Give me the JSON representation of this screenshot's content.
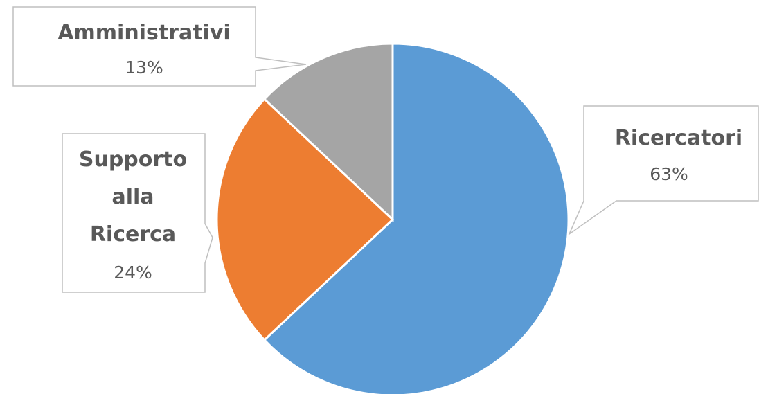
{
  "chart_data": {
    "type": "pie",
    "title": "",
    "start_angle_deg": 0,
    "direction": "clockwise",
    "slices": [
      {
        "label_lines": [
          "Ricercatori"
        ],
        "value": 63,
        "value_label": "63%",
        "color": "#5B9BD5"
      },
      {
        "label_lines": [
          "Supporto",
          "alla",
          "Ricerca"
        ],
        "value": 24,
        "value_label": "24%",
        "color": "#ED7D31"
      },
      {
        "label_lines": [
          "Amministrativi"
        ],
        "value": 13,
        "value_label": "13%",
        "color": "#A5A5A5"
      }
    ],
    "data_labels": "callouts with leader lines",
    "legend": "none"
  }
}
